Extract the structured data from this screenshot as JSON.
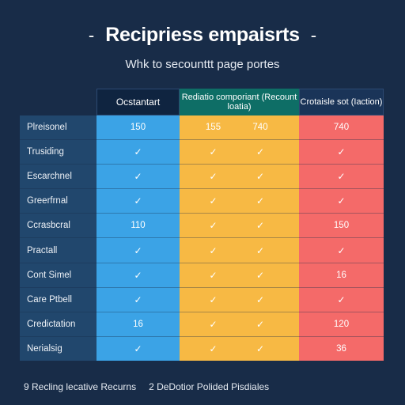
{
  "header": {
    "title": "Recipriess empaisrts",
    "subtitle": "Whk to secounttt page portes",
    "dash_left": "-",
    "dash_right": "-"
  },
  "columns": [
    {
      "label": "Ocstantart"
    },
    {
      "label": "Rediatio comporiant (Recount loatia)"
    },
    {
      "label": "Crotaisle sot (Iaction)"
    }
  ],
  "rows": [
    {
      "label": "Plreisonel",
      "c1": "150",
      "c2a": "155",
      "c2b": "740",
      "c3": "740"
    },
    {
      "label": "Trusiding",
      "c1": "✓",
      "c2a": "✓",
      "c2b": "✓",
      "c3": "✓"
    },
    {
      "label": "Escarchnel",
      "c1": "✓",
      "c2a": "✓",
      "c2b": "✓",
      "c3": "✓"
    },
    {
      "label": "Greerfrnal",
      "c1": "✓",
      "c2a": "✓",
      "c2b": "✓",
      "c3": "✓"
    },
    {
      "label": "Ccrasbcral",
      "c1": "110",
      "c2a": "✓",
      "c2b": "✓",
      "c3": "150"
    },
    {
      "label": "Practall",
      "c1": "✓",
      "c2a": "✓",
      "c2b": "✓",
      "c3": "✓"
    },
    {
      "label": "Cont Simel",
      "c1": "✓",
      "c2a": "✓",
      "c2b": "✓",
      "c3": "16"
    },
    {
      "label": "Care Ptbell",
      "c1": "✓",
      "c2a": "✓",
      "c2b": "✓",
      "c3": "✓"
    },
    {
      "label": "Credictation",
      "c1": "16",
      "c2a": "✓",
      "c2b": "✓",
      "c3": "120"
    },
    {
      "label": "Nerialsig",
      "c1": "✓",
      "c2a": "✓",
      "c2b": "✓",
      "c3": "36"
    }
  ],
  "footer": {
    "left": "9 Recling lecative Recurns",
    "right": "2 DeDotior Polided Pisdiales"
  },
  "colors": {
    "background": "#182c48",
    "label_column": "#21476d",
    "blue_column": "#3ba3e6",
    "yellow_column": "#f7b944",
    "red_column": "#f46a69",
    "teal_header": "#0e6e66"
  }
}
